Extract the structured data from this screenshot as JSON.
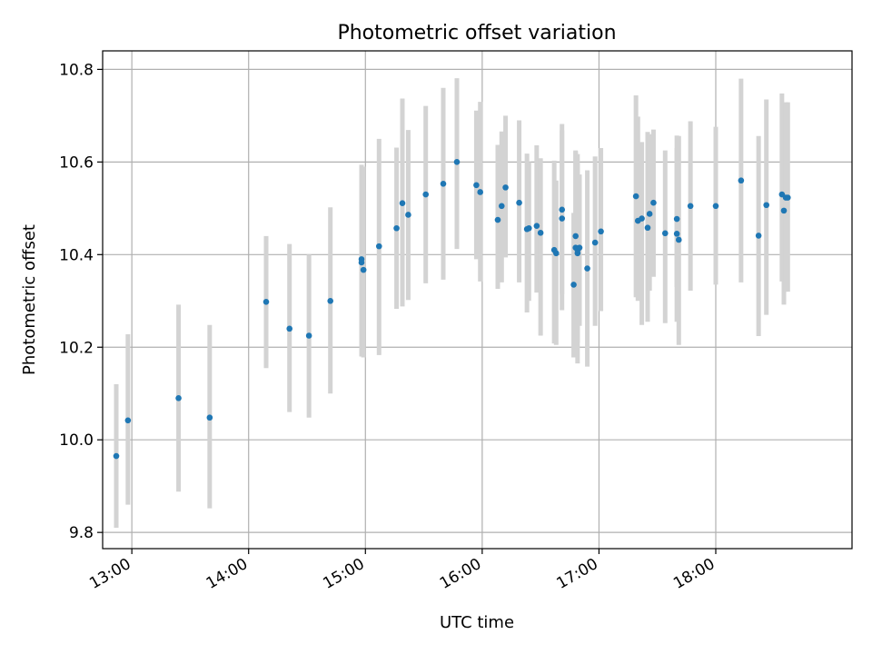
{
  "chart_data": {
    "type": "scatter",
    "title": "Photometric offset variation",
    "xlabel": "UTC time",
    "ylabel": "Photometric offset",
    "x_axis_type": "time",
    "xlim": [
      "12:45",
      "19:10"
    ],
    "ylim": [
      9.765,
      10.84
    ],
    "x_ticks": [
      "13:00",
      "14:00",
      "15:00",
      "16:00",
      "17:00",
      "18:00"
    ],
    "y_ticks": [
      9.8,
      10.0,
      10.2,
      10.4,
      10.6,
      10.8
    ],
    "y_tick_labels": [
      "9.8",
      "10.0",
      "10.2",
      "10.4",
      "10.6",
      "10.8"
    ],
    "grid": true,
    "colors": {
      "points": "#1f77b4",
      "error_bars": "#d3d3d3"
    },
    "series": [
      {
        "x": [
          "12:52",
          "12:58",
          "13:24",
          "13:40",
          "14:09",
          "14:21",
          "14:31",
          "14:42",
          "14:58",
          "14:58",
          "14:59",
          "15:07",
          "15:16",
          "15:19",
          "15:22",
          "15:31",
          "15:40",
          "15:47",
          "15:57",
          "15:59",
          "16:08",
          "16:10",
          "16:12",
          "16:19",
          "16:23",
          "16:24",
          "16:28",
          "16:30",
          "16:37",
          "16:38",
          "16:41",
          "16:41",
          "16:47",
          "16:48",
          "16:48",
          "16:49",
          "16:49",
          "16:50",
          "16:54",
          "16:58",
          "17:01",
          "17:19",
          "17:20",
          "17:22",
          "17:25",
          "17:26",
          "17:28",
          "17:34",
          "17:40",
          "17:40",
          "17:41",
          "17:47",
          "18:00",
          "18:13",
          "18:22",
          "18:26",
          "18:34",
          "18:35",
          "18:36",
          "18:37"
        ],
        "y": [
          9.965,
          10.042,
          10.09,
          10.048,
          10.298,
          10.24,
          10.225,
          10.3,
          10.39,
          10.383,
          10.367,
          10.418,
          10.457,
          10.511,
          10.486,
          10.53,
          10.553,
          10.6,
          10.55,
          10.535,
          10.475,
          10.505,
          10.545,
          10.512,
          10.455,
          10.457,
          10.462,
          10.447,
          10.41,
          10.403,
          10.497,
          10.478,
          10.335,
          10.44,
          10.415,
          10.403,
          10.41,
          10.415,
          10.37,
          10.426,
          10.45,
          10.526,
          10.473,
          10.478,
          10.458,
          10.488,
          10.512,
          10.446,
          10.445,
          10.477,
          10.432,
          10.505,
          10.505,
          10.56,
          10.441,
          10.507,
          10.53,
          10.495,
          10.523,
          10.523
        ],
        "yerr_low": [
          9.81,
          9.86,
          9.888,
          9.852,
          10.155,
          10.06,
          10.048,
          10.1,
          10.18,
          10.2,
          10.178,
          10.183,
          10.283,
          10.288,
          10.302,
          10.338,
          10.346,
          10.412,
          10.39,
          10.342,
          10.326,
          10.34,
          10.394,
          10.34,
          10.275,
          10.3,
          10.318,
          10.225,
          10.208,
          10.205,
          10.28,
          10.315,
          10.178,
          10.195,
          10.22,
          10.21,
          10.165,
          10.246,
          10.158,
          10.246,
          10.278,
          10.308,
          10.3,
          10.248,
          10.255,
          10.322,
          10.352,
          10.252,
          10.255,
          10.33,
          10.205,
          10.322,
          10.335,
          10.34,
          10.224,
          10.27,
          10.342,
          10.292,
          10.32,
          10.32
        ],
        "yerr_high": [
          10.12,
          10.228,
          10.292,
          10.248,
          10.44,
          10.423,
          10.4,
          10.502,
          10.578,
          10.594,
          10.59,
          10.65,
          10.631,
          10.737,
          10.669,
          10.721,
          10.76,
          10.781,
          10.711,
          10.73,
          10.637,
          10.666,
          10.7,
          10.69,
          10.618,
          10.6,
          10.636,
          10.608,
          10.603,
          10.56,
          10.682,
          10.668,
          10.49,
          10.623,
          10.625,
          10.617,
          10.6,
          10.573,
          10.582,
          10.612,
          10.63,
          10.744,
          10.698,
          10.643,
          10.665,
          10.66,
          10.67,
          10.625,
          10.63,
          10.657,
          10.656,
          10.688,
          10.676,
          10.78,
          10.656,
          10.735,
          10.748,
          10.705,
          10.729,
          10.729
        ]
      }
    ]
  }
}
